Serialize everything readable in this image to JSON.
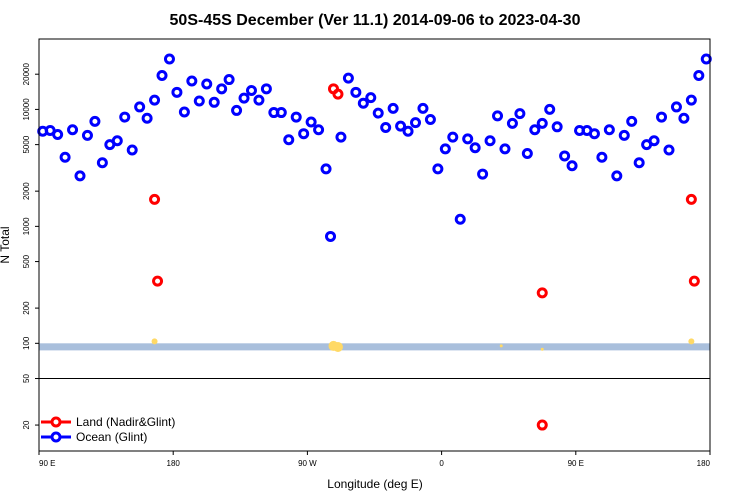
{
  "chart_data": {
    "type": "scatter",
    "title": "50S-45S December (Ver 11.1)   2014-09-06 to 2023-04-30",
    "xlabel": "Longitude (deg E)",
    "ylabel": "N Total",
    "y_scale": "log",
    "ylim": [
      12,
      40000
    ],
    "x_ticks": [
      {
        "value": 90,
        "label": "90 E"
      },
      {
        "value": 180,
        "label": "180"
      },
      {
        "value": 270,
        "label": "90 W"
      },
      {
        "value": 360,
        "label": "0"
      },
      {
        "value": 450,
        "label": "90 E"
      },
      {
        "value": 540,
        "label": "180"
      }
    ],
    "xlim": [
      90,
      540
    ],
    "y_ticks": [
      {
        "value": 20,
        "label": "20"
      },
      {
        "value": 50,
        "label": "50"
      },
      {
        "value": 100,
        "label": "100"
      },
      {
        "value": 200,
        "label": "200"
      },
      {
        "value": 500,
        "label": "500"
      },
      {
        "value": 1000,
        "label": "1000"
      },
      {
        "value": 2000,
        "label": "2000"
      },
      {
        "value": 5000,
        "label": "5000"
      },
      {
        "value": 10000,
        "label": "10000"
      },
      {
        "value": 20000,
        "label": "20000"
      }
    ],
    "reference_line": 50,
    "band": {
      "from": 87,
      "to": 100,
      "color": "#a9bfdc"
    },
    "legend": [
      {
        "name": "Land (Nadir&Glint)",
        "color": "#ff0000"
      },
      {
        "name": "Ocean (Glint)",
        "color": "#0000ff"
      }
    ],
    "series": [
      {
        "name": "Land (Nadir&Glint)",
        "color": "#ff0000",
        "x": [
          167.5,
          169.5,
          287.5,
          290.5,
          427.5,
          427.5,
          527.5,
          529.5
        ],
        "y": [
          1700,
          340,
          15000,
          13500,
          270,
          20,
          1700,
          340
        ]
      },
      {
        "name": "Ocean (Glint)",
        "color": "#0000ff",
        "x": [
          92.5,
          97.5,
          102.5,
          107.5,
          112.5,
          117.5,
          122.5,
          127.5,
          132.5,
          137.5,
          142.5,
          147.5,
          152.5,
          157.5,
          162.5,
          167.5,
          172.5,
          177.5,
          182.5,
          187.5,
          192.5,
          197.5,
          202.5,
          207.5,
          212.5,
          217.5,
          222.5,
          227.5,
          232.5,
          237.5,
          242.5,
          247.5,
          252.5,
          257.5,
          262.5,
          267.5,
          272.5,
          277.5,
          282.5,
          285.5,
          292.5,
          297.5,
          302.5,
          307.5,
          312.5,
          317.5,
          322.5,
          327.5,
          332.5,
          337.5,
          342.5,
          347.5,
          352.5,
          357.5,
          362.5,
          367.5,
          372.5,
          377.5,
          382.5,
          387.5,
          392.5,
          397.5,
          402.5,
          407.5,
          412.5,
          417.5,
          422.5,
          427.5,
          432.5,
          437.5,
          442.5,
          447.5,
          452.5,
          457.5,
          462.5,
          467.5,
          472.5,
          477.5,
          482.5,
          487.5,
          492.5,
          497.5,
          502.5,
          507.5,
          512.5,
          517.5,
          522.5,
          527.5,
          532.5,
          537.5
        ],
        "y": [
          6500,
          6600,
          6100,
          3900,
          6700,
          2700,
          6000,
          7900,
          3500,
          5000,
          5400,
          8600,
          4500,
          10500,
          8400,
          12000,
          19500,
          27000,
          14000,
          9500,
          17500,
          11800,
          16500,
          11500,
          15000,
          18000,
          9800,
          12500,
          14500,
          12000,
          15000,
          9400,
          9400,
          5500,
          8600,
          6200,
          7800,
          6700,
          3100,
          820,
          5800,
          18500,
          14000,
          11300,
          12600,
          9300,
          7000,
          10200,
          7200,
          6500,
          7700,
          10200,
          8200,
          3100,
          4600,
          5800,
          1150,
          5600,
          4700,
          2800,
          5400,
          8800,
          4600,
          7600,
          9200,
          4200,
          6700,
          7600,
          10000,
          7100,
          4000,
          3300,
          6600,
          6600,
          6200,
          3900,
          6700,
          2700,
          6000,
          7900,
          3500,
          5000,
          5400,
          8600,
          4500,
          10500,
          8400,
          12000,
          19500,
          27000
        ]
      }
    ],
    "markers": {
      "name": "measurement sites",
      "color": "#ffd966",
      "x": [
        167.5,
        287.5,
        290.5,
        400,
        427.5,
        527.5
      ],
      "y": [
        104,
        95,
        93,
        95,
        89,
        104
      ],
      "sizes": [
        3,
        5,
        5,
        1.5,
        1.5,
        3
      ]
    }
  }
}
